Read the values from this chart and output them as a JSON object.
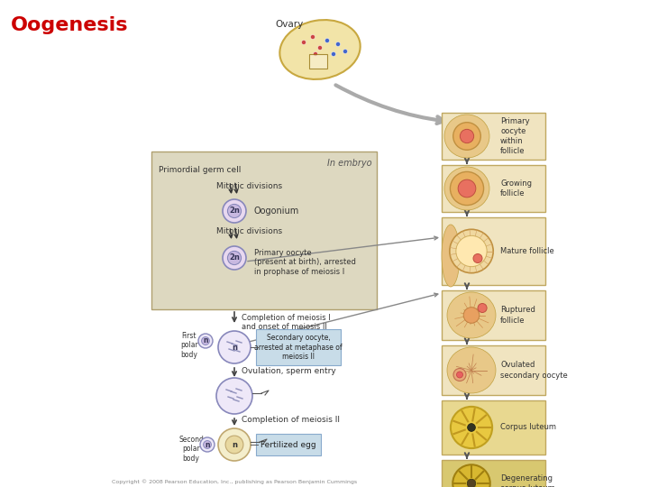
{
  "title": "Oogenesis",
  "title_color": "#cc0000",
  "title_fontsize": 16,
  "background_color": "#ffffff",
  "copyright": "Copyright © 2008 Pearson Education, Inc., publishing as Pearson Benjamin Cummings",
  "ovary_label": "Ovary",
  "in_embryo_label": "In embryo",
  "primordial_label": "Primordial germ cell",
  "mitotic1_label": "Mitotic divisions",
  "oogonium_label": "Oogonium",
  "mitotic2_label": "Mitotic divisions",
  "primary_oocyte_label": "Primary oocyte\n(present at birth), arrested\nin prophase of meiosis I",
  "completion_label": "Completion of meiosis I\nand onset of meiosis II",
  "secondary_label": "Secondary oocyte,\narrested at metaphase of\nmeiosis II",
  "ovulation_label": "Ovulation, sperm entry",
  "completion2_label": "Completion of meiosis II",
  "first_polar": "First\npolar\nbody",
  "second_polar": "Second\npolar\nbody",
  "fertilized_egg": "Fertilized egg",
  "follicle_labels": [
    "Primary\noocyte\nwithin\nfollicle",
    "Growing\nfollicle",
    "Mature follicle",
    "Ruptured\nfollicle",
    "Ovulated\nsecondary oocyte",
    "Corpus luteum",
    "Degenerating\ncorpus luteum"
  ],
  "beige_bg": "#ddd8c0",
  "light_blue_box": "#c8dce8",
  "arrow_color": "#666666",
  "cell_fill": "#e8d8f0",
  "cell_fill2": "#ede8f8",
  "cell_border": "#8888bb",
  "nucleus_fill": "#c8b8e0",
  "follicle_box_bg": [
    "#f0e4c0",
    "#f0e4c0",
    "#f0e4c0",
    "#f0e4c0",
    "#f0e4c0",
    "#e8d890",
    "#d8c870"
  ],
  "follicle_box_border": "#c0a860"
}
